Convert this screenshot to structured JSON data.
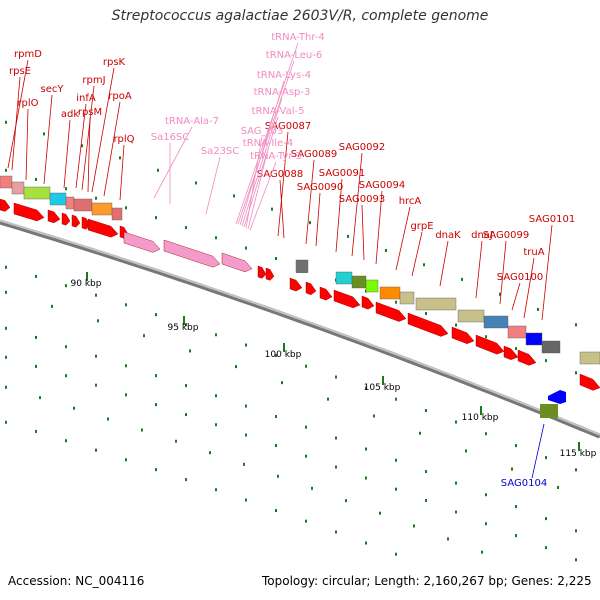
{
  "title": "Streptococcus agalactiae 2603V/R, complete genome",
  "footer": {
    "accession": "Accession: NC_004116",
    "topology": "Topology: circular; Length: 2,160,267 bp; Genes: 2,225"
  },
  "colors": {
    "cds": "#ff0000",
    "rna": "#f59bcb",
    "backbone": "#999999",
    "tick": "#1b7a1b",
    "gene_label": "#cc0000",
    "rna_label": "#f08cc0",
    "minus_label": "#0000cc"
  },
  "axis_ticks": [
    "90 kbp",
    "95 kbp",
    "100 kbp",
    "105 kbp",
    "110 kbp",
    "115 kbp"
  ],
  "rna_labels": [
    "tRNA-Thr-4",
    "tRNA-Leu-6",
    "tRNA-Lys-4",
    "tRNA-Asp-3",
    "tRNA-Val-5",
    "SAG_r03",
    "tRNA-Ile-4",
    "tRNA-Tyr-3",
    "tRNA-Ala-7",
    "Sa16SC",
    "Sa23SC"
  ],
  "gene_labels": [
    "rpmD",
    "rpsE",
    "rplO",
    "secY",
    "adk",
    "infA",
    "rpmJ",
    "rpsM",
    "rpsK",
    "rpoA",
    "rplQ",
    "SAG0087",
    "SAG0088",
    "SAG0089",
    "SAG0090",
    "SAG0091",
    "SAG0092",
    "SAG0093",
    "SAG0094",
    "hrcA",
    "grpE",
    "dnaK",
    "dnaJ",
    "SAG0099",
    "SAG0100",
    "truA",
    "SAG0101",
    "SAG0104"
  ]
}
